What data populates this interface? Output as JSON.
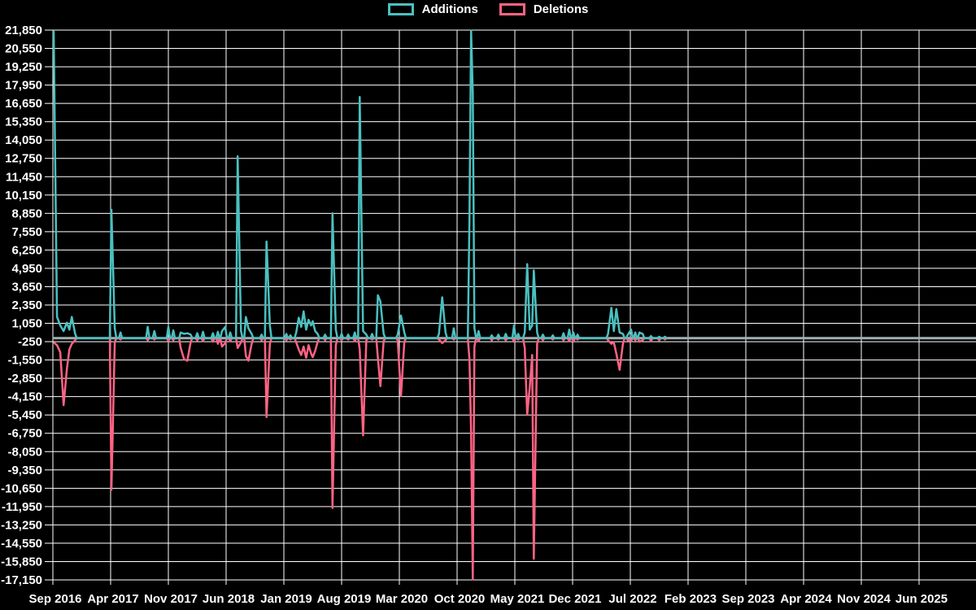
{
  "legend": [
    {
      "label": "Additions",
      "color": "#4BC0C0"
    },
    {
      "label": "Deletions",
      "color": "#FF6384"
    }
  ],
  "colors": {
    "background": "#000000",
    "grid": "#FFFFFF",
    "tick_text": "#FFFFFF",
    "zero_line": "#9FB0B0",
    "additions": "#4BC0C0",
    "deletions": "#FF6384"
  },
  "chart_data": {
    "type": "line",
    "title": "",
    "legend_position": "top",
    "grid": true,
    "x_tick_labels": [
      "Sep 2016",
      "Apr 2017",
      "Nov 2017",
      "Jun 2018",
      "Jan 2019",
      "Aug 2019",
      "Mar 2020",
      "Oct 2020",
      "May 2021",
      "Dec 2021",
      "Jul 2022",
      "Feb 2023",
      "Sep 2023",
      "Apr 2024",
      "Nov 2024",
      "Jun 2025"
    ],
    "x_tick_interval_months": 7,
    "y_axis": {
      "max": 21850,
      "min": -17150,
      "step": 1300
    },
    "series_names": [
      "Additions",
      "Deletions"
    ],
    "x_unit": "months since Sep 2016 (weekly samples)",
    "data_end_month": 74.5,
    "points_format": [
      "month_index",
      "additions",
      "deletions"
    ],
    "points": [
      [
        0.1,
        21800,
        -300
      ],
      [
        0.5,
        1500,
        -500
      ],
      [
        0.9,
        900,
        -1000
      ],
      [
        1.3,
        500,
        -4750
      ],
      [
        1.7,
        1100,
        -2200
      ],
      [
        2.0,
        600,
        -800
      ],
      [
        2.3,
        1500,
        -400
      ],
      [
        2.7,
        300,
        -150
      ],
      [
        7.1,
        9100,
        -10750
      ],
      [
        7.5,
        700,
        -300
      ],
      [
        8.2,
        400,
        -100
      ],
      [
        11.5,
        800,
        -150
      ],
      [
        12.3,
        500,
        -100
      ],
      [
        14.0,
        800,
        -200
      ],
      [
        14.6,
        550,
        -150
      ],
      [
        15.5,
        400,
        -700
      ],
      [
        15.9,
        300,
        -1500
      ],
      [
        16.3,
        350,
        -1600
      ],
      [
        16.7,
        250,
        -300
      ],
      [
        17.5,
        350,
        -150
      ],
      [
        18.2,
        450,
        -200
      ],
      [
        19.4,
        350,
        -250
      ],
      [
        20.0,
        450,
        -400
      ],
      [
        20.5,
        500,
        -600
      ],
      [
        20.9,
        800,
        -350
      ],
      [
        21.5,
        400,
        -200
      ],
      [
        22.4,
        12900,
        -700
      ],
      [
        22.8,
        500,
        -300
      ],
      [
        23.4,
        1500,
        -1250
      ],
      [
        23.7,
        700,
        -1600
      ],
      [
        24.1,
        300,
        -400
      ],
      [
        25.3,
        250,
        -150
      ],
      [
        25.9,
        6850,
        -5600
      ],
      [
        26.3,
        900,
        -400
      ],
      [
        28.3,
        300,
        -150
      ],
      [
        28.8,
        200,
        -100
      ],
      [
        29.5,
        400,
        -300
      ],
      [
        29.8,
        1450,
        -800
      ],
      [
        30.1,
        800,
        -1200
      ],
      [
        30.4,
        1900,
        -600
      ],
      [
        30.7,
        600,
        -1400
      ],
      [
        31.0,
        1300,
        -500
      ],
      [
        31.3,
        900,
        -1100
      ],
      [
        31.5,
        1200,
        -1350
      ],
      [
        31.8,
        500,
        -900
      ],
      [
        32.1,
        300,
        -250
      ],
      [
        33.0,
        250,
        -150
      ],
      [
        33.9,
        8850,
        -12050
      ],
      [
        34.3,
        600,
        -500
      ],
      [
        35.0,
        300,
        -150
      ],
      [
        35.8,
        250,
        -100
      ],
      [
        36.6,
        400,
        -200
      ],
      [
        37.2,
        17100,
        -800
      ],
      [
        37.6,
        500,
        -6900
      ],
      [
        38.0,
        250,
        -150
      ],
      [
        38.7,
        300,
        -100
      ],
      [
        39.4,
        3040,
        -1400
      ],
      [
        39.7,
        2600,
        -3400
      ],
      [
        40.1,
        300,
        -200
      ],
      [
        41.8,
        250,
        -150
      ],
      [
        42.2,
        1600,
        -4100
      ],
      [
        42.6,
        400,
        -300
      ],
      [
        46.8,
        300,
        -100
      ],
      [
        47.2,
        2900,
        -350
      ],
      [
        47.6,
        400,
        -150
      ],
      [
        48.6,
        700,
        -100
      ],
      [
        50.5,
        8400,
        -1500
      ],
      [
        50.7,
        21800,
        -6600
      ],
      [
        50.9,
        17400,
        -17100
      ],
      [
        51.1,
        700,
        -600
      ],
      [
        51.6,
        500,
        -200
      ],
      [
        53.2,
        200,
        -150
      ],
      [
        54.0,
        250,
        -100
      ],
      [
        54.9,
        300,
        -150
      ],
      [
        55.9,
        900,
        -250
      ],
      [
        56.4,
        300,
        -100
      ],
      [
        57.2,
        400,
        -700
      ],
      [
        57.5,
        5250,
        -5450
      ],
      [
        57.8,
        600,
        -3500
      ],
      [
        58.1,
        900,
        -1200
      ],
      [
        58.3,
        4800,
        -15650
      ],
      [
        58.7,
        400,
        -400
      ],
      [
        59.4,
        250,
        -150
      ],
      [
        60.6,
        200,
        -100
      ],
      [
        61.9,
        350,
        -150
      ],
      [
        62.6,
        600,
        -200
      ],
      [
        63.1,
        400,
        -250
      ],
      [
        63.6,
        250,
        -100
      ],
      [
        67.3,
        300,
        -150
      ],
      [
        67.7,
        2150,
        -400
      ],
      [
        68.0,
        500,
        -300
      ],
      [
        68.3,
        2060,
        -1100
      ],
      [
        68.7,
        400,
        -2250
      ],
      [
        69.1,
        300,
        -400
      ],
      [
        69.7,
        250,
        -150
      ],
      [
        70.1,
        600,
        -200
      ],
      [
        70.6,
        400,
        -150
      ],
      [
        71.1,
        400,
        -250
      ],
      [
        71.5,
        300,
        -150
      ],
      [
        72.5,
        150,
        -200
      ],
      [
        73.5,
        100,
        -150
      ],
      [
        74.2,
        100,
        -100
      ]
    ]
  }
}
